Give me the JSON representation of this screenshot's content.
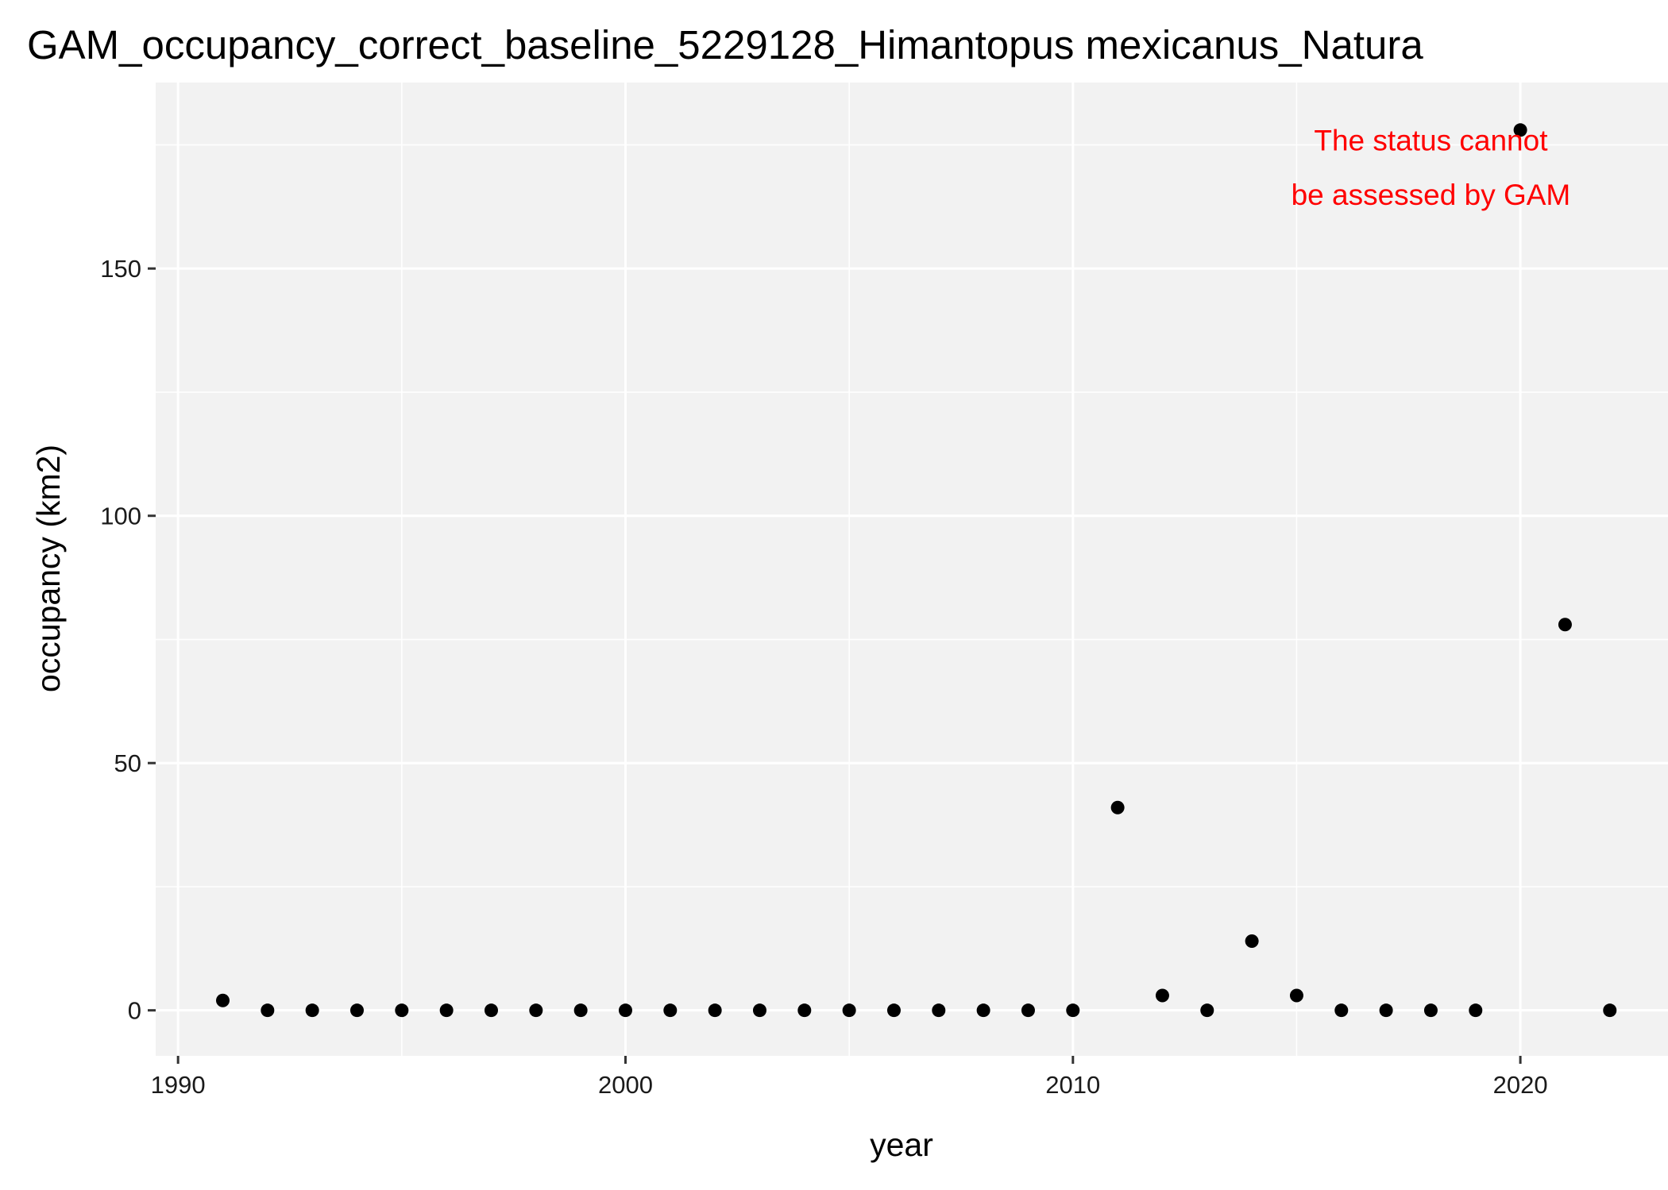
{
  "chart_data": {
    "type": "scatter",
    "title": "GAM_occupancy_correct_baseline_5229128_Himantopus mexicanus_Natura",
    "xlabel": "year",
    "ylabel": "occupancy (km2)",
    "xlim": [
      1989.5,
      2023.3
    ],
    "ylim": [
      -9.2,
      187.6
    ],
    "x_ticks": [
      1990,
      2000,
      2010,
      2020
    ],
    "x_tick_labels": [
      "1990",
      "2000",
      "2010",
      "2020"
    ],
    "y_ticks": [
      0,
      50,
      100,
      150
    ],
    "y_tick_labels": [
      "0",
      "50",
      "100",
      "150"
    ],
    "x_minor_ticks": [
      1995,
      2005,
      2015
    ],
    "y_minor_ticks": [
      25,
      75,
      125,
      175
    ],
    "grid": true,
    "annotation": {
      "lines": [
        "The status cannot",
        "be assessed by GAM"
      ],
      "x": 2018,
      "y": 176,
      "line2_y": 165
    },
    "series": [
      {
        "name": "occupancy",
        "x": [
          1991,
          1992,
          1993,
          1994,
          1995,
          1996,
          1997,
          1998,
          1999,
          2000,
          2001,
          2002,
          2003,
          2004,
          2005,
          2006,
          2007,
          2008,
          2009,
          2010,
          2011,
          2012,
          2013,
          2014,
          2015,
          2016,
          2017,
          2018,
          2019,
          2020,
          2021,
          2022
        ],
        "y": [
          2,
          0,
          0,
          0,
          0,
          0,
          0,
          0,
          0,
          0,
          0,
          0,
          0,
          0,
          0,
          0,
          0,
          0,
          0,
          0,
          41,
          3,
          0,
          14,
          3,
          0,
          0,
          0,
          0,
          178,
          78,
          0
        ]
      }
    ],
    "colors": {
      "panel_background": "#f2f2f2",
      "grid": "#ffffff",
      "points": "#000000",
      "annotation": "#ff0000",
      "text": "#000000",
      "tick_text": "#1a1a1a",
      "axis_ticks": "#333333"
    }
  }
}
